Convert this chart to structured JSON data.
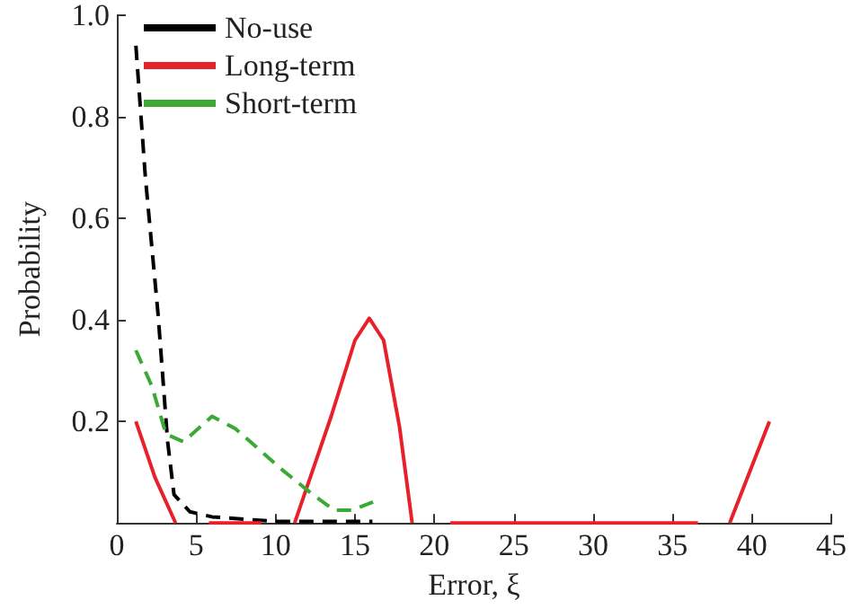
{
  "chart_data": {
    "type": "line",
    "xlabel": "Error, ξ",
    "ylabel": "Probability",
    "xlim": [
      0,
      45
    ],
    "xticks": [
      0,
      5,
      10,
      15,
      20,
      25,
      30,
      35,
      40,
      45
    ],
    "ylim": [
      0,
      1
    ],
    "yticks": [
      {
        "value": 0,
        "label": null
      },
      0.2,
      0.4,
      0.6,
      0.8,
      {
        "value": 1,
        "label": "1.0"
      }
    ],
    "grid": false,
    "legend": "top left",
    "marker": "none",
    "series": [
      {
        "name": "No-use",
        "color": "#000000",
        "line_style": "dashed",
        "x": [
          1.2,
          1.8,
          2.6,
          3.2,
          3.6,
          4.6,
          6,
          10,
          16.1
        ],
        "values": [
          0.94,
          0.68,
          0.41,
          0.16,
          0.056,
          0.022,
          0.012,
          0.003,
          0.003
        ]
      },
      {
        "name": "Long-term",
        "color": "#e8202a",
        "line_style": "solid",
        "x": [
          1.2,
          2.4,
          3.7,
          4.5,
          5.8,
          9.1,
          10,
          11.2,
          13.5,
          15,
          15.9,
          16.8,
          17.8,
          18.6,
          19.5,
          21,
          36.6,
          37.5,
          38.6,
          41.1
        ],
        "values": [
          0.2,
          0.09,
          0,
          null,
          0,
          0,
          null,
          0,
          0.21,
          0.36,
          0.403,
          0.36,
          0.19,
          0,
          null,
          0,
          0,
          null,
          0,
          0.2
        ]
      },
      {
        "name": "Short-term",
        "color": "#3aaa35",
        "line_style": "dashed",
        "x": [
          1.2,
          2.2,
          3.1,
          4.2,
          6,
          7.5,
          10.4,
          12.3,
          13.7,
          14.8,
          16.3
        ],
        "values": [
          0.34,
          0.27,
          0.175,
          0.16,
          0.21,
          0.185,
          0.105,
          0.057,
          0.025,
          0.025,
          0.043
        ]
      }
    ]
  }
}
